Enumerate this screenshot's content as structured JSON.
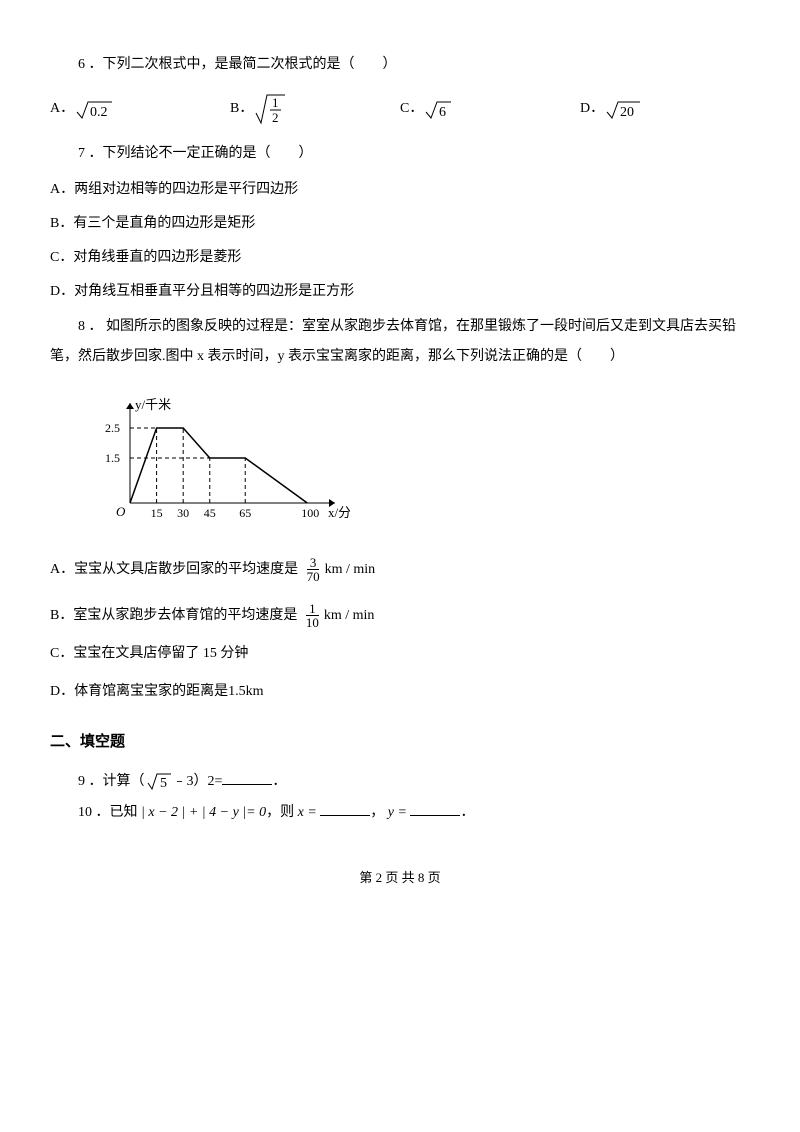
{
  "q6": {
    "number": "6",
    "text": "．下列二次根式中，是最简二次根式的是（　　）",
    "options": {
      "A": {
        "label": "A．",
        "expr_val": "0.2"
      },
      "B": {
        "label": "B．",
        "frac_num": "1",
        "frac_den": "2"
      },
      "C": {
        "label": "C．",
        "expr_val": "6"
      },
      "D": {
        "label": "D．",
        "expr_val": "20"
      }
    }
  },
  "q7": {
    "number": "7",
    "text": "．下列结论不一定正确的是（　　）",
    "choices": {
      "A": "A．两组对边相等的四边形是平行四边形",
      "B": "B．有三个是直角的四边形是矩形",
      "C": "C．对角线垂直的四边形是菱形",
      "D": "D．对角线互相垂直平分且相等的四边形是正方形"
    }
  },
  "q8": {
    "number": "8",
    "text_pre": "． 如图所示的图象反映的过程是：室室从家跑步去体育馆，在那里锻炼了一段时间后又走到文具店去买铅笔，然后散步回家.图中 x 表示时间，y 表示宝宝离家的距离，那么下列说法正确的是",
    "paren": "（　　）",
    "chart": {
      "y_label": "y/千米",
      "x_label": "x/分",
      "y_ticks": [
        1.5,
        2.5
      ],
      "x_ticks": [
        15,
        30,
        45,
        65,
        100
      ],
      "points": [
        [
          0,
          0
        ],
        [
          15,
          2.5
        ],
        [
          30,
          2.5
        ],
        [
          45,
          1.5
        ],
        [
          65,
          1.5
        ],
        [
          100,
          0
        ]
      ],
      "line_color": "#000000",
      "dash_pattern": "4,3",
      "axis_color": "#000000"
    },
    "choices": {
      "A": {
        "pre": "A．宝宝从文具店散步回家的平均速度是",
        "num": "3",
        "den": "70",
        "unit": "km / min"
      },
      "B": {
        "pre": "B．室宝从家跑步去体育馆的平均速度是",
        "num": "1",
        "den": "10",
        "unit": "km / min"
      },
      "C": "C．宝宝在文具店停留了 15 分钟",
      "D": {
        "pre": "D．体育馆离宝宝家的距离是",
        "val": "1.5km"
      }
    }
  },
  "section2": "二、填空题",
  "q9": {
    "number": "9",
    "text_pre": "．计算（",
    "sqrt_val": "5",
    "text_post": "﹣3）2=",
    "tail": "．"
  },
  "q10": {
    "number": "10",
    "text_pre": "．已知",
    "expr": "| x − 2 | + | 4 − y |= 0",
    "text_mid1": "，则",
    "var1": "x =",
    "text_mid2": "，",
    "var2": "y =",
    "tail": "．"
  },
  "footer": "第 2 页 共 8 页"
}
